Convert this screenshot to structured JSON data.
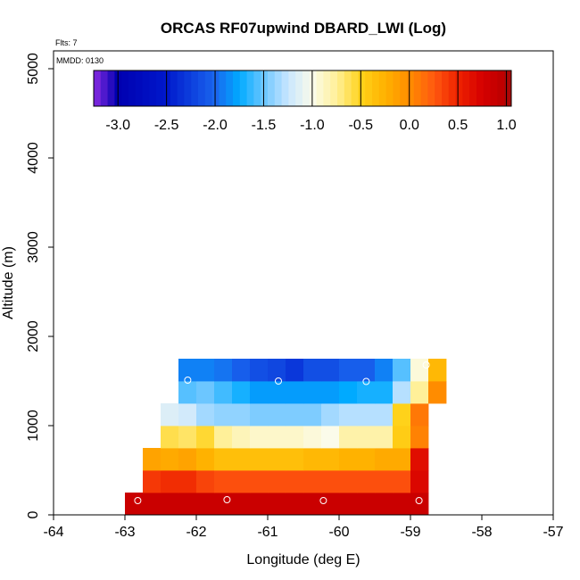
{
  "chart_data": {
    "type": "heatmap",
    "title": "ORCAS RF07upwind DBARD_LWI (Log)",
    "annotations": {
      "flights": "Flts: 7",
      "date": "MMDD: 0130"
    },
    "xlabel": "Longitude (deg E)",
    "ylabel": "Altitude (m)",
    "xlim": [
      -64,
      -57
    ],
    "ylim": [
      0,
      5200
    ],
    "x_ticks": [
      "-64",
      "-63",
      "-62",
      "-61",
      "-60",
      "-59",
      "-58",
      "-57"
    ],
    "x_tick_values": [
      -64,
      -63,
      -62,
      -61,
      -60,
      -59,
      -58,
      -57
    ],
    "y_ticks": [
      "0",
      "1000",
      "2000",
      "3000",
      "4000",
      "5000"
    ],
    "y_tick_values": [
      0,
      1000,
      2000,
      3000,
      4000,
      5000
    ],
    "colorbar": {
      "range": [
        -3.25,
        1.05
      ],
      "tick_labels": [
        "-3.0",
        "-2.5",
        "-2.0",
        "-1.5",
        "-1.0",
        "-0.5",
        "0.0",
        "0.5",
        "1.0"
      ],
      "tick_values": [
        -3.0,
        -2.5,
        -2.0,
        -1.5,
        -1.0,
        -0.5,
        0.0,
        0.5,
        1.0
      ],
      "color_stops": [
        {
          "value": -3.25,
          "color": "#8a2be2"
        },
        {
          "value": -3.0,
          "color": "#0000b0"
        },
        {
          "value": -2.5,
          "color": "#0018cc"
        },
        {
          "value": -2.0,
          "color": "#1a66ee"
        },
        {
          "value": -1.75,
          "color": "#00aaff"
        },
        {
          "value": -1.5,
          "color": "#6cc6ff"
        },
        {
          "value": -1.25,
          "color": "#c8e6ff"
        },
        {
          "value": -1.0,
          "color": "#fbfbea"
        },
        {
          "value": -0.75,
          "color": "#fff099"
        },
        {
          "value": -0.5,
          "color": "#ffd21a"
        },
        {
          "value": -0.25,
          "color": "#ffb200"
        },
        {
          "value": 0.0,
          "color": "#ff8c00"
        },
        {
          "value": 0.25,
          "color": "#ff5a10"
        },
        {
          "value": 0.5,
          "color": "#ee2200"
        },
        {
          "value": 0.75,
          "color": "#d60000"
        },
        {
          "value": 1.0,
          "color": "#b80000"
        },
        {
          "value": 1.05,
          "color": "#8b1a1a"
        }
      ]
    },
    "cell_width_deg": 0.25,
    "rows": [
      {
        "alt_bottom": 0,
        "alt_top": 250,
        "x_start": -63.0,
        "values": [
          0.85,
          0.85,
          0.85,
          0.85,
          0.85,
          0.85,
          0.85,
          0.85,
          0.85,
          0.85,
          0.85,
          0.85,
          0.85,
          0.85,
          0.85,
          0.85,
          0.85
        ]
      },
      {
        "alt_bottom": 250,
        "alt_top": 500,
        "x_start": -62.75,
        "values": [
          0.4,
          0.45,
          0.45,
          0.35,
          0.3,
          0.3,
          0.3,
          0.3,
          0.3,
          0.3,
          0.3,
          0.3,
          0.3,
          0.3,
          0.3,
          0.7
        ]
      },
      {
        "alt_bottom": 500,
        "alt_top": 750,
        "x_start": -62.75,
        "values": [
          -0.15,
          -0.2,
          -0.15,
          -0.25,
          -0.35,
          -0.35,
          -0.35,
          -0.35,
          -0.35,
          -0.3,
          -0.3,
          -0.25,
          -0.25,
          -0.2,
          -0.2,
          0.65
        ]
      },
      {
        "alt_bottom": 750,
        "alt_top": 1000,
        "x_start": -62.5,
        "values": [
          -0.6,
          -0.65,
          -0.55,
          -0.75,
          -0.85,
          -0.9,
          -0.9,
          -0.9,
          -0.95,
          -1.0,
          -0.8,
          -0.8,
          -0.8,
          -0.45,
          0.05
        ]
      },
      {
        "alt_bottom": 1000,
        "alt_top": 1250,
        "x_start": -62.5,
        "values": [
          -1.15,
          -1.2,
          -1.35,
          -1.4,
          -1.4,
          -1.45,
          -1.45,
          -1.45,
          -1.45,
          -1.35,
          -1.3,
          -1.3,
          -1.3,
          -0.5,
          0.1
        ]
      },
      {
        "alt_bottom": 1250,
        "alt_top": 1500,
        "x_start": -62.25,
        "values": [
          -1.55,
          -1.5,
          -1.6,
          -1.7,
          -1.8,
          -1.8,
          -1.8,
          -1.8,
          -1.8,
          -1.75,
          -1.7,
          -1.7,
          -1.3,
          -0.75,
          0.0
        ]
      },
      {
        "alt_bottom": 1500,
        "alt_top": 1750,
        "x_start": -62.25,
        "values": [
          -1.9,
          -1.9,
          -1.95,
          -2.05,
          -2.15,
          -2.2,
          -2.3,
          -2.15,
          -2.15,
          -2.05,
          -2.05,
          -1.9,
          -1.55,
          -0.95,
          -0.3
        ]
      }
    ],
    "sample_points": [
      {
        "lon": -62.82,
        "alt": 160
      },
      {
        "lon": -61.57,
        "alt": 170
      },
      {
        "lon": -60.22,
        "alt": 160
      },
      {
        "lon": -58.88,
        "alt": 160
      },
      {
        "lon": -62.12,
        "alt": 1510
      },
      {
        "lon": -60.85,
        "alt": 1500
      },
      {
        "lon": -59.62,
        "alt": 1495
      },
      {
        "lon": -58.78,
        "alt": 1680
      }
    ]
  }
}
